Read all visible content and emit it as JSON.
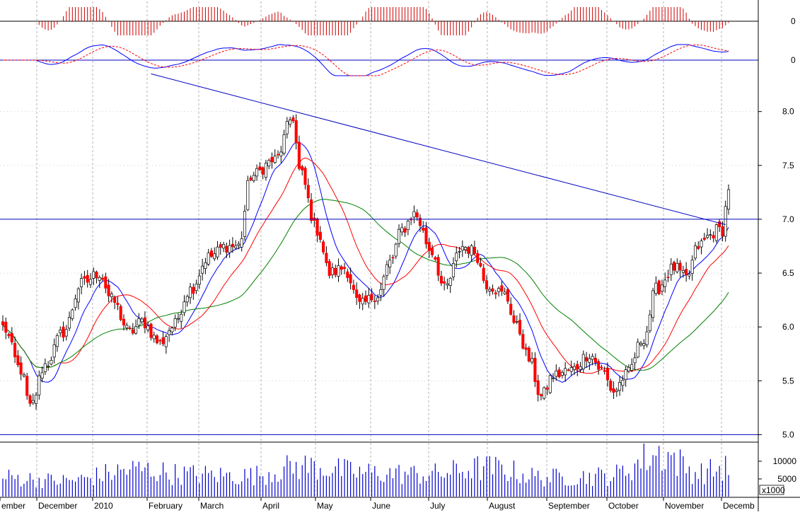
{
  "colors": {
    "background": "#ffffff",
    "grid": "#b0b0b0",
    "frame": "#000000",
    "up_candle_fill": "#ffffff",
    "down_candle_fill": "#ff0000",
    "candle_outline": "#000000",
    "ma_short": "#0000ff",
    "ma_mid": "#ff0000",
    "ma_long": "#008000",
    "trendline": "#0000c0",
    "volume": "#0000cc",
    "osc_hist": "#cc0000",
    "osc_line": "#0000ff",
    "osc_signal": "#ff0000"
  },
  "chart_data": {
    "type": "candlestick",
    "title": "",
    "grid": true,
    "months": [
      "ember",
      "December",
      "2010",
      "February",
      "March",
      "April",
      "May",
      "June",
      "July",
      "August",
      "September",
      "October",
      "November",
      "Decemb"
    ],
    "price_axis": {
      "ylim": [
        4.95,
        8.3
      ],
      "ticks": [
        "5.0",
        "5.5",
        "6.0",
        "6.5",
        "7.0",
        "7.5",
        "8.0"
      ],
      "tick_values": [
        5.0,
        5.5,
        6.0,
        6.5,
        7.0,
        7.5,
        8.0
      ]
    },
    "oscillator_panel_1": {
      "zero_label": "0"
    },
    "oscillator_panel_2": {
      "zero_label": "0"
    },
    "volume_axis": {
      "ylim": [
        0,
        15000
      ],
      "ticks": [
        "5000",
        "10000"
      ],
      "tick_values": [
        5000,
        10000
      ],
      "multiplier_label": "x1000"
    },
    "horizontal_lines": [
      7.0,
      5.0
    ],
    "trendline": {
      "from": {
        "index": 49,
        "price": 8.35
      },
      "to": {
        "index": 239,
        "price": 6.95
      }
    },
    "close_anchors": [
      [
        0,
        6.0
      ],
      [
        6,
        5.6
      ],
      [
        9,
        5.25
      ],
      [
        14,
        5.65
      ],
      [
        20,
        5.95
      ],
      [
        26,
        6.4
      ],
      [
        32,
        6.5
      ],
      [
        36,
        6.25
      ],
      [
        42,
        5.95
      ],
      [
        46,
        6.05
      ],
      [
        52,
        5.85
      ],
      [
        56,
        6.0
      ],
      [
        62,
        6.35
      ],
      [
        68,
        6.65
      ],
      [
        74,
        6.75
      ],
      [
        78,
        6.75
      ],
      [
        82,
        7.4
      ],
      [
        90,
        7.55
      ],
      [
        96,
        7.95
      ],
      [
        98,
        7.45
      ],
      [
        104,
        6.9
      ],
      [
        108,
        6.5
      ],
      [
        113,
        6.55
      ],
      [
        118,
        6.2
      ],
      [
        124,
        6.3
      ],
      [
        128,
        6.6
      ],
      [
        132,
        6.9
      ],
      [
        136,
        7.05
      ],
      [
        142,
        6.7
      ],
      [
        146,
        6.35
      ],
      [
        152,
        6.75
      ],
      [
        156,
        6.7
      ],
      [
        160,
        6.4
      ],
      [
        166,
        6.3
      ],
      [
        170,
        6.0
      ],
      [
        174,
        5.7
      ],
      [
        178,
        5.35
      ],
      [
        182,
        5.55
      ],
      [
        188,
        5.6
      ],
      [
        194,
        5.75
      ],
      [
        198,
        5.6
      ],
      [
        202,
        5.4
      ],
      [
        206,
        5.55
      ],
      [
        212,
        5.9
      ],
      [
        216,
        6.35
      ],
      [
        222,
        6.55
      ],
      [
        226,
        6.45
      ],
      [
        230,
        6.75
      ],
      [
        234,
        6.85
      ],
      [
        236,
        6.9
      ],
      [
        238,
        6.9
      ],
      [
        240,
        7.3
      ]
    ],
    "volume_anchors": [
      [
        0,
        6000
      ],
      [
        20,
        5000
      ],
      [
        45,
        8500
      ],
      [
        60,
        7000
      ],
      [
        80,
        6500
      ],
      [
        100,
        9500
      ],
      [
        120,
        7500
      ],
      [
        140,
        7000
      ],
      [
        160,
        9000
      ],
      [
        180,
        6000
      ],
      [
        200,
        6500
      ],
      [
        218,
        13500
      ],
      [
        230,
        7500
      ],
      [
        240,
        9000
      ]
    ],
    "sessions": 241
  }
}
